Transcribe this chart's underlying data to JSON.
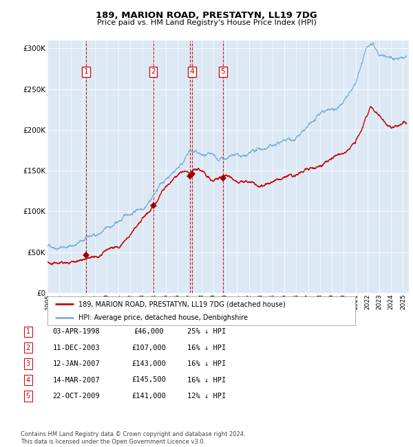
{
  "title": "189, MARION ROAD, PRESTATYN, LL19 7DG",
  "subtitle": "Price paid vs. HM Land Registry's House Price Index (HPI)",
  "legend_label_red": "189, MARION ROAD, PRESTATYN, LL19 7DG (detached house)",
  "legend_label_blue": "HPI: Average price, detached house, Denbighshire",
  "footer_line1": "Contains HM Land Registry data © Crown copyright and database right 2024.",
  "footer_line2": "This data is licensed under the Open Government Licence v3.0.",
  "transactions": [
    {
      "num": 1,
      "date": "1998-04-03",
      "price": 46000,
      "pct": "25%",
      "x_year": 1998.25
    },
    {
      "num": 2,
      "date": "2003-12-11",
      "price": 107000,
      "pct": "16%",
      "x_year": 2003.94
    },
    {
      "num": 3,
      "date": "2007-01-12",
      "price": 143000,
      "pct": "16%",
      "x_year": 2007.03
    },
    {
      "num": 4,
      "date": "2007-03-14",
      "price": 145500,
      "pct": "16%",
      "x_year": 2007.2
    },
    {
      "num": 5,
      "date": "2009-10-22",
      "price": 141000,
      "pct": "12%",
      "x_year": 2009.81
    }
  ],
  "shown_labels": [
    1,
    2,
    4,
    5
  ],
  "ylim": [
    0,
    310000
  ],
  "yticks": [
    0,
    50000,
    100000,
    150000,
    200000,
    250000,
    300000
  ],
  "xlim_start": 1995.0,
  "xlim_end": 2025.5,
  "plot_bg": "#dce9f5",
  "red_color": "#cc0000",
  "blue_color": "#7aafd4",
  "dashed_color": "#cc0000",
  "marker_color": "#990000",
  "box_color": "#cc0000"
}
